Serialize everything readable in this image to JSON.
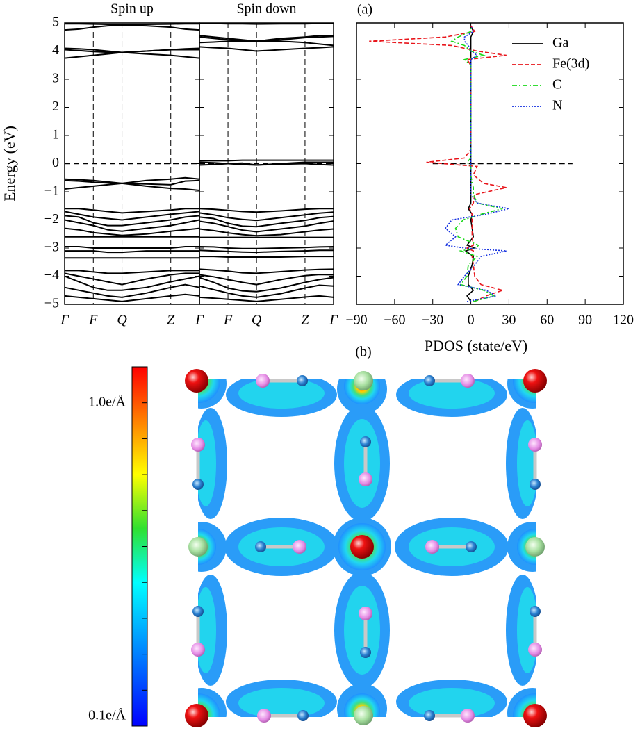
{
  "chart_data": [
    {
      "type": "line",
      "title": "Spin up",
      "ylabel": "Energy (eV)",
      "color": "#000000",
      "x": [
        0,
        0.5,
        1,
        1.5,
        2,
        2.85,
        3.7,
        4.2,
        4.7
      ],
      "xlim": [
        0,
        4.7
      ],
      "xticks": [
        {
          "value": 0,
          "label": "Γ"
        },
        {
          "value": 1,
          "label": "F"
        },
        {
          "value": 2,
          "label": "Q"
        },
        {
          "value": 3.7,
          "label": "Z"
        },
        {
          "value": 4.7,
          "label": "Γ"
        }
      ],
      "ylim": [
        -5,
        5
      ],
      "yticks": [
        {
          "value": -5,
          "label": "−5"
        },
        {
          "value": -4,
          "label": "−4"
        },
        {
          "value": -3,
          "label": "−3"
        },
        {
          "value": -2,
          "label": "−2"
        },
        {
          "value": -1,
          "label": "−1"
        },
        0,
        1,
        2,
        3,
        4,
        5
      ],
      "fermi_level": 0,
      "grid_x": "dashed",
      "series": [
        {
          "values": [
            4.97,
            4.97,
            4.96,
            4.95,
            4.95,
            4.95,
            4.96,
            4.97,
            4.97
          ]
        },
        {
          "values": [
            4.75,
            4.78,
            4.85,
            4.9,
            4.92,
            4.9,
            4.85,
            4.78,
            4.75
          ]
        },
        {
          "values": [
            4.1,
            4.08,
            4.05,
            4.0,
            3.95,
            4.0,
            4.05,
            4.08,
            4.1
          ]
        },
        {
          "values": [
            4.05,
            4.02,
            3.98,
            3.96,
            3.95,
            3.9,
            3.85,
            3.8,
            3.75
          ]
        },
        {
          "values": [
            3.75,
            3.8,
            3.85,
            3.9,
            3.95,
            4.0,
            4.05,
            4.05,
            4.05
          ]
        },
        {
          "values": [
            -0.55,
            -0.57,
            -0.6,
            -0.65,
            -0.7,
            -0.6,
            -0.55,
            -0.5,
            -0.55
          ]
        },
        {
          "values": [
            -0.9,
            -0.85,
            -0.8,
            -0.75,
            -0.7,
            -0.8,
            -0.88,
            -0.9,
            -0.95
          ]
        },
        {
          "values": [
            -0.6,
            -0.62,
            -0.66,
            -0.69,
            -0.7,
            -0.72,
            -0.75,
            -0.62,
            -0.6
          ]
        },
        {
          "values": [
            -1.6,
            -1.6,
            -1.65,
            -1.7,
            -1.75,
            -1.7,
            -1.65,
            -1.6,
            -1.6
          ]
        },
        {
          "values": [
            -1.7,
            -1.8,
            -1.9,
            -1.95,
            -2.0,
            -1.9,
            -1.8,
            -1.75,
            -1.7
          ]
        },
        {
          "values": [
            -1.85,
            -1.9,
            -2.1,
            -2.2,
            -2.2,
            -2.1,
            -2.0,
            -1.9,
            -1.85
          ]
        },
        {
          "values": [
            -2.0,
            -2.1,
            -2.2,
            -2.35,
            -2.4,
            -2.3,
            -2.2,
            -2.1,
            -2.0
          ]
        },
        {
          "values": [
            -2.3,
            -2.35,
            -2.45,
            -2.5,
            -2.55,
            -2.5,
            -2.4,
            -2.35,
            -2.3
          ]
        },
        {
          "values": [
            -2.6,
            -2.6,
            -2.6,
            -2.6,
            -2.6,
            -2.6,
            -2.6,
            -2.6,
            -2.6
          ]
        },
        {
          "values": [
            -2.95,
            -2.95,
            -3.0,
            -3.0,
            -3.0,
            -3.0,
            -3.0,
            -2.95,
            -2.95
          ]
        },
        {
          "values": [
            -3.1,
            -3.1,
            -3.1,
            -3.15,
            -3.15,
            -3.1,
            -3.1,
            -3.1,
            -3.1
          ]
        },
        {
          "values": [
            -3.35,
            -3.35,
            -3.35,
            -3.35,
            -3.35,
            -3.35,
            -3.35,
            -3.35,
            -3.35
          ]
        },
        {
          "values": [
            -3.8,
            -3.8,
            -3.85,
            -3.9,
            -3.9,
            -3.85,
            -3.8,
            -3.8,
            -3.8
          ]
        },
        {
          "values": [
            -3.9,
            -4.0,
            -4.1,
            -4.2,
            -4.3,
            -4.1,
            -3.95,
            -3.9,
            -3.9
          ]
        },
        {
          "values": [
            -4.0,
            -4.2,
            -4.4,
            -4.5,
            -4.5,
            -4.4,
            -4.2,
            -4.1,
            -4.0
          ]
        },
        {
          "values": [
            -4.4,
            -4.5,
            -4.6,
            -4.7,
            -4.75,
            -4.6,
            -4.4,
            -4.3,
            -4.4
          ]
        },
        {
          "values": [
            -4.7,
            -4.75,
            -4.8,
            -4.85,
            -4.9,
            -4.8,
            -4.7,
            -4.65,
            -4.7
          ]
        }
      ]
    },
    {
      "type": "line",
      "title": "Spin down",
      "annotation": "(a)",
      "color": "#000000",
      "x": [
        0,
        0.5,
        1,
        1.5,
        2,
        2.85,
        3.7,
        4.2,
        4.7
      ],
      "xlim": [
        0,
        4.7
      ],
      "xticks": [
        {
          "value": 1,
          "label": "F"
        },
        {
          "value": 2,
          "label": "Q"
        },
        {
          "value": 3.7,
          "label": "Z"
        },
        {
          "value": 4.7,
          "label": "Γ"
        }
      ],
      "ylim": [
        -5,
        5
      ],
      "fermi_level": 0,
      "grid_x": "dashed",
      "series": [
        {
          "values": [
            4.98,
            4.98,
            4.97,
            4.97,
            4.96,
            4.97,
            4.97,
            4.98,
            4.98
          ]
        },
        {
          "values": [
            4.55,
            4.5,
            4.45,
            4.4,
            4.35,
            4.45,
            4.5,
            4.55,
            4.55
          ]
        },
        {
          "values": [
            4.5,
            4.45,
            4.4,
            4.38,
            4.35,
            4.35,
            4.3,
            4.25,
            4.2
          ]
        },
        {
          "values": [
            4.3,
            4.32,
            4.35,
            4.36,
            4.35,
            4.4,
            4.48,
            4.5,
            4.52
          ]
        },
        {
          "values": [
            4.15,
            4.12,
            4.1,
            4.05,
            4.0,
            4.05,
            4.1,
            4.12,
            4.15
          ]
        },
        {
          "values": [
            0.1,
            0.1,
            0.1,
            0.12,
            0.12,
            0.12,
            0.12,
            0.12,
            0.12
          ]
        },
        {
          "values": [
            0.05,
            0.03,
            0.0,
            -0.03,
            -0.05,
            0.0,
            0.05,
            0.05,
            0.05
          ]
        },
        {
          "values": [
            -0.05,
            -0.03,
            0.0,
            0.02,
            -0.05,
            -0.02,
            0.0,
            -0.03,
            -0.05
          ]
        },
        {
          "values": [
            -1.6,
            -1.62,
            -1.66,
            -1.7,
            -1.72,
            -1.68,
            -1.62,
            -1.6,
            -1.6
          ]
        },
        {
          "values": [
            -1.75,
            -1.82,
            -1.92,
            -1.98,
            -2.02,
            -1.92,
            -1.82,
            -1.76,
            -1.72
          ]
        },
        {
          "values": [
            -1.9,
            -1.95,
            -2.12,
            -2.22,
            -2.24,
            -2.12,
            -2.02,
            -1.92,
            -1.88
          ]
        },
        {
          "values": [
            -2.05,
            -2.12,
            -2.24,
            -2.36,
            -2.42,
            -2.32,
            -2.22,
            -2.12,
            -2.04
          ]
        },
        {
          "values": [
            -2.32,
            -2.38,
            -2.46,
            -2.52,
            -2.56,
            -2.52,
            -2.42,
            -2.36,
            -2.32
          ]
        },
        {
          "values": [
            -2.62,
            -2.62,
            -2.62,
            -2.62,
            -2.62,
            -2.62,
            -2.62,
            -2.62,
            -2.62
          ]
        },
        {
          "values": [
            -2.95,
            -2.96,
            -3.0,
            -3.02,
            -3.02,
            -3.0,
            -2.98,
            -2.96,
            -2.95
          ]
        },
        {
          "values": [
            -3.08,
            -3.1,
            -3.12,
            -3.14,
            -3.15,
            -3.12,
            -3.1,
            -3.08,
            -3.08
          ]
        },
        {
          "values": [
            -3.3,
            -3.3,
            -3.32,
            -3.32,
            -3.32,
            -3.32,
            -3.3,
            -3.3,
            -3.3
          ]
        },
        {
          "values": [
            -3.75,
            -3.78,
            -3.82,
            -3.88,
            -3.9,
            -3.84,
            -3.78,
            -3.76,
            -3.75
          ]
        },
        {
          "values": [
            -3.95,
            -4.02,
            -4.12,
            -4.22,
            -4.3,
            -4.12,
            -3.98,
            -3.94,
            -3.95
          ]
        },
        {
          "values": [
            -4.05,
            -4.22,
            -4.42,
            -4.52,
            -4.55,
            -4.42,
            -4.22,
            -4.12,
            -4.05
          ]
        },
        {
          "values": [
            -4.35,
            -4.48,
            -4.6,
            -4.7,
            -4.75,
            -4.62,
            -4.42,
            -4.32,
            -4.35
          ]
        },
        {
          "values": [
            -4.75,
            -4.78,
            -4.82,
            -4.86,
            -4.9,
            -4.82,
            -4.74,
            -4.7,
            -4.75
          ]
        }
      ]
    },
    {
      "type": "pdos",
      "orientation": "horizontal",
      "xlabel": "PDOS (state/eV)",
      "xlim": [
        -90,
        120
      ],
      "xticks": [
        {
          "value": -90,
          "label": "−90"
        },
        {
          "value": -60,
          "label": "−60"
        },
        {
          "value": -30,
          "label": "−30"
        },
        0,
        30,
        60,
        90,
        120
      ],
      "ylim": [
        -5,
        5
      ],
      "fermi_level": 0,
      "fermi_xrange": [
        -30,
        80
      ],
      "legend": "upper right",
      "x": [
        -4.9,
        -4.7,
        -4.5,
        -4.3,
        -4.0,
        -3.6,
        -3.3,
        -3.1,
        -3.0,
        -2.9,
        -2.6,
        -2.3,
        -2.0,
        -1.8,
        -1.6,
        -1.4,
        -1.1,
        -0.85,
        -0.7,
        -0.4,
        -0.1,
        0.05,
        0.2,
        0.5,
        1.0,
        2.0,
        3.0,
        3.5,
        3.7,
        3.85,
        4.0,
        4.2,
        4.35,
        4.5,
        4.7,
        4.9
      ],
      "series": [
        {
          "name": "Ga",
          "color": "#000000",
          "linestyle": "solid",
          "values": [
            0,
            -3,
            2,
            -2,
            -2,
            1,
            2,
            -4,
            3,
            -3,
            2,
            1,
            0,
            1,
            -2,
            0,
            0,
            0,
            0,
            0,
            0,
            0,
            0,
            0,
            0,
            0,
            0,
            0,
            0,
            0,
            0,
            0,
            0,
            0,
            2,
            0
          ]
        },
        {
          "name": "Fe(3d)",
          "color": "#e8141a",
          "linestyle": "dashed",
          "values": [
            3,
            12,
            25,
            8,
            3,
            2,
            1,
            2,
            -3,
            2,
            1,
            1,
            1,
            1,
            -1,
            2,
            3,
            28,
            10,
            2,
            5,
            -35,
            -5,
            0,
            0,
            0,
            0,
            0,
            -3,
            28,
            5,
            -15,
            -80,
            -20,
            3,
            0
          ]
        },
        {
          "name": "C",
          "color": "#18d818",
          "linestyle": "dashdot",
          "values": [
            2,
            18,
            10,
            -8,
            -3,
            -2,
            5,
            -8,
            4,
            6,
            -10,
            -12,
            -6,
            8,
            25,
            5,
            2,
            2,
            1,
            0,
            0,
            -3,
            0,
            0,
            0,
            0,
            0,
            0,
            -5,
            10,
            0,
            -5,
            -15,
            -10,
            0,
            0
          ]
        },
        {
          "name": "N",
          "color": "#1430e0",
          "linestyle": "dotted",
          "values": [
            -3,
            20,
            12,
            -10,
            -5,
            3,
            8,
            28,
            -5,
            -20,
            -12,
            -20,
            -15,
            12,
            30,
            5,
            0,
            0,
            0,
            0,
            0,
            0,
            0,
            0,
            0,
            0,
            0,
            0,
            0,
            5,
            0,
            -2,
            -5,
            -5,
            2,
            0
          ]
        }
      ]
    },
    {
      "type": "heatmap",
      "annotation": "(b)",
      "colorbar": {
        "lim": [
          0.1,
          1.1
        ],
        "ticks": [
          {
            "value": 0.1,
            "label": "0.1e/Å"
          },
          {
            "value": 1.0,
            "label": "1.0e/Å"
          }
        ],
        "minor_ticks": [
          0.2,
          0.3,
          0.4,
          0.5,
          0.6,
          0.7,
          0.8,
          0.9
        ]
      }
    }
  ]
}
